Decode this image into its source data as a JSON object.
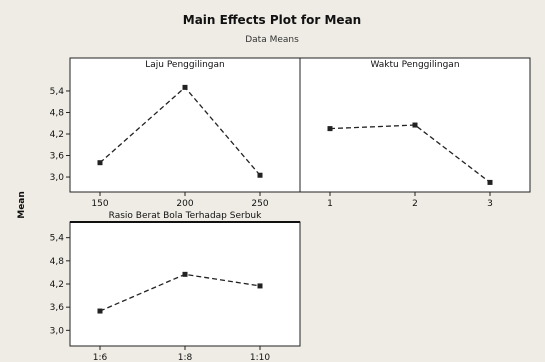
{
  "chart_data": {
    "type": "line",
    "title": "Main Effects Plot for Mean",
    "subtitle": "Data Means",
    "ylabel": "Mean",
    "ylim": [
      2.75,
      5.65
    ],
    "yticks": [
      "5,4",
      "4,8",
      "4,2",
      "3,6",
      "3,0"
    ],
    "ytick_values": [
      5.4,
      4.8,
      4.2,
      3.6,
      3.0
    ],
    "colors": {
      "background": "#eeece4",
      "panel": "#ffffff",
      "line": "#222222"
    },
    "panels": [
      {
        "title": "Laju Penggilingan",
        "categories": [
          "150",
          "200",
          "250"
        ],
        "values": [
          3.4,
          5.5,
          3.05
        ]
      },
      {
        "title": "Waktu Penggilingan",
        "categories": [
          "1",
          "2",
          "3"
        ],
        "values": [
          4.35,
          4.45,
          2.85
        ]
      },
      {
        "title": "Rasio Berat Bola Terhadap Serbuk",
        "categories": [
          "1:6",
          "1:8",
          "1:10"
        ],
        "values": [
          3.5,
          4.45,
          4.15
        ]
      }
    ]
  }
}
